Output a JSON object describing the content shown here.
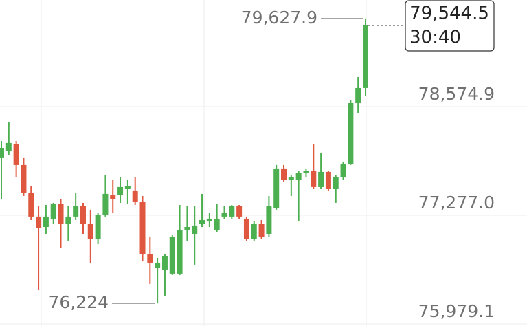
{
  "chart_data": {
    "type": "candlestick",
    "ylim": [
      75954,
      79848
    ],
    "yticks": [
      {
        "value": 75979.1,
        "label": "75,979.1"
      },
      {
        "value": 77277.0,
        "label": "77,277.0"
      },
      {
        "value": 78574.9,
        "label": "78,574.9"
      }
    ],
    "grid": true,
    "up_color": "#4caf50",
    "down_color": "#e0573f",
    "open": [
      77959,
      78041,
      78123,
      77877,
      77548,
      77261,
      77137,
      77236,
      77408,
      77178,
      77261,
      77384,
      77178,
      76989,
      77285,
      77523,
      77523,
      77589,
      77573,
      77441,
      76809,
      76644,
      76628,
      76579,
      76579,
      77096,
      77055,
      77178,
      77203,
      77096,
      77261,
      77261,
      77384,
      77236,
      76989,
      77178,
      77055,
      77367,
      77836,
      77696,
      77696,
      77778,
      77811,
      77614,
      77795,
      77589,
      77729,
      77893,
      78616,
      78797
    ],
    "high": [
      78164,
      78386,
      78164,
      77959,
      77630,
      77384,
      77400,
      77425,
      77466,
      77384,
      77548,
      77425,
      77343,
      77302,
      77753,
      77696,
      77729,
      77696,
      77729,
      77507,
      77014,
      76768,
      76809,
      77039,
      77400,
      77384,
      77384,
      77532,
      77302,
      77408,
      77384,
      77400,
      77400,
      77261,
      77203,
      77219,
      77507,
      77877,
      77877,
      77753,
      77811,
      77836,
      78123,
      78025,
      77811,
      77753,
      77918,
      78657,
      78928,
      79627.9
    ],
    "low": [
      77466,
      78000,
      77729,
      77507,
      77219,
      76382,
      77055,
      77178,
      76891,
      76973,
      77219,
      77055,
      76702,
      76932,
      77261,
      77302,
      77425,
      77408,
      77400,
      76727,
      76456,
      76224,
      76316,
      76562,
      76562,
      76973,
      76686,
      77137,
      77137,
      77072,
      77236,
      77236,
      77236,
      76973,
      76973,
      76989,
      77014,
      77343,
      77671,
      77507,
      77203,
      77729,
      77589,
      77589,
      77565,
      77425,
      77696,
      77877,
      78493,
      78698
    ],
    "close": [
      78082,
      78140,
      77877,
      77548,
      77261,
      77121,
      77261,
      77408,
      77178,
      77261,
      77384,
      77178,
      76989,
      77285,
      77532,
      77466,
      77614,
      77630,
      77441,
      76809,
      76710,
      76710,
      76792,
      77014,
      77096,
      77137,
      77154,
      77219,
      77236,
      77236,
      77302,
      77384,
      77261,
      76989,
      77178,
      77014,
      77384,
      77836,
      77696,
      77729,
      77778,
      77811,
      77614,
      77795,
      77589,
      77729,
      77893,
      78616,
      78797,
      79544.5
    ],
    "annotations": {
      "high": {
        "value": 79627.9,
        "label": "79,627.9"
      },
      "low": {
        "value": 76224,
        "label": "76,224"
      },
      "last": {
        "value": 79544.5,
        "label": "79,544.5"
      },
      "countdown": "30:40"
    }
  }
}
